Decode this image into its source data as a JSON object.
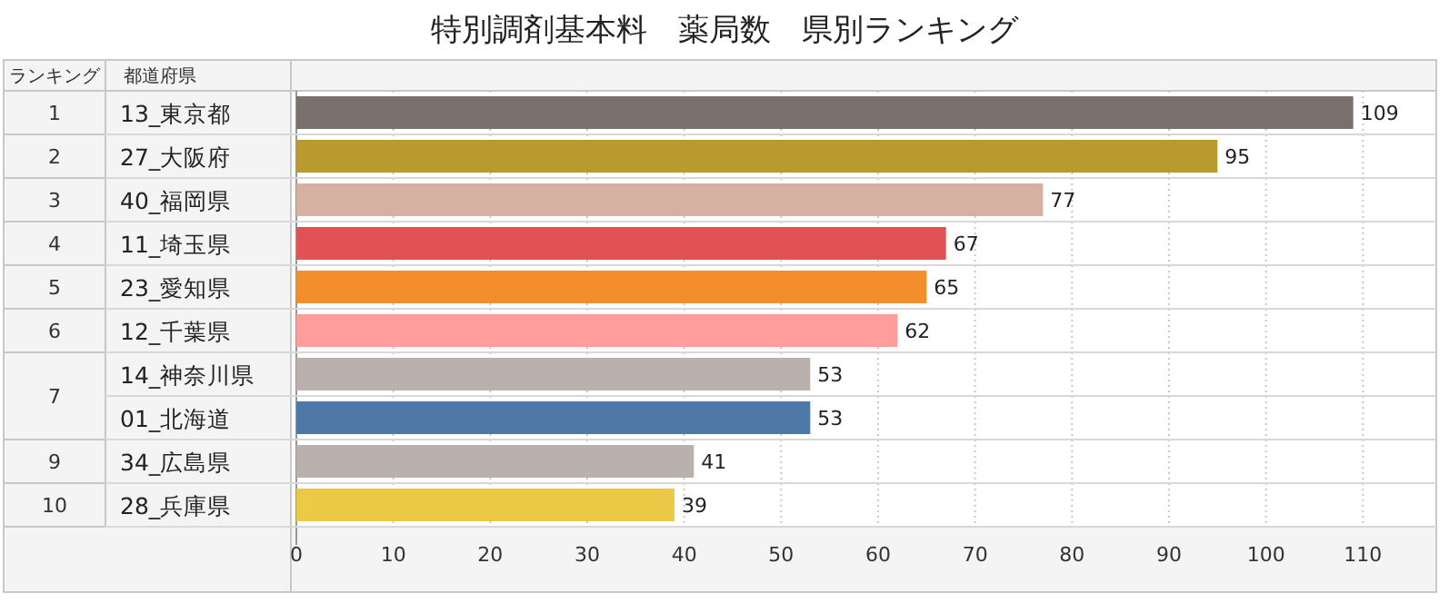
{
  "chart_data": {
    "type": "bar",
    "orientation": "horizontal",
    "title": "特別調剤基本料　薬局数　県別ランキング",
    "ylabel": "都道府県",
    "categories": [
      "13_東京都",
      "27_大阪府",
      "40_福岡県",
      "11_埼玉県",
      "23_愛知県",
      "12_千葉県",
      "14_神奈川県",
      "01_北海道",
      "34_広島県",
      "28_兵庫県"
    ],
    "values": [
      109,
      95,
      77,
      67,
      65,
      62,
      53,
      53,
      41,
      39
    ],
    "colors": [
      "#7a706e",
      "#b89a2e",
      "#d6b0a0",
      "#e05255",
      "#f28e2b",
      "#ff9d9a",
      "#bab0ac",
      "#4e79a7",
      "#bab0ac",
      "#edc948"
    ],
    "xlim": [
      0,
      117
    ],
    "xticks": [
      0,
      10,
      20,
      30,
      40,
      50,
      60,
      70,
      80,
      90,
      100,
      110
    ],
    "grid": "x",
    "data_labels": true,
    "annotations": [
      "ランキング",
      "1",
      "2",
      "3",
      "4",
      "5",
      "6",
      "7",
      "9",
      "10"
    ]
  }
}
